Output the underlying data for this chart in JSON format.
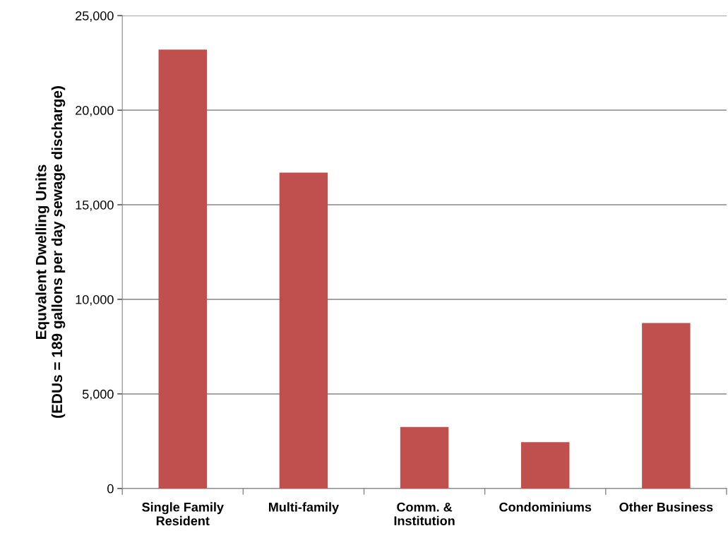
{
  "chart_data": {
    "type": "bar",
    "ylabel": "Equvalent Dwelling Units\n(EDUs = 189 gallons per day sewage discharge)",
    "categories": [
      "Single Family\nResident",
      "Multi-family",
      "Comm. &\nInstitution",
      "Condominiums",
      "Other Business"
    ],
    "values": [
      23200,
      16700,
      3250,
      2450,
      8750
    ],
    "color": "#c0504d",
    "ylim": [
      0,
      25000
    ],
    "yticks": [
      {
        "value": 0,
        "label": "0"
      },
      {
        "value": 5000,
        "label": "5,000"
      },
      {
        "value": 10000,
        "label": "10,000"
      },
      {
        "value": 15000,
        "label": "15,000"
      },
      {
        "value": 20000,
        "label": "20,000"
      },
      {
        "value": 25000,
        "label": "25,000"
      }
    ],
    "grid": "y",
    "legend": false
  }
}
